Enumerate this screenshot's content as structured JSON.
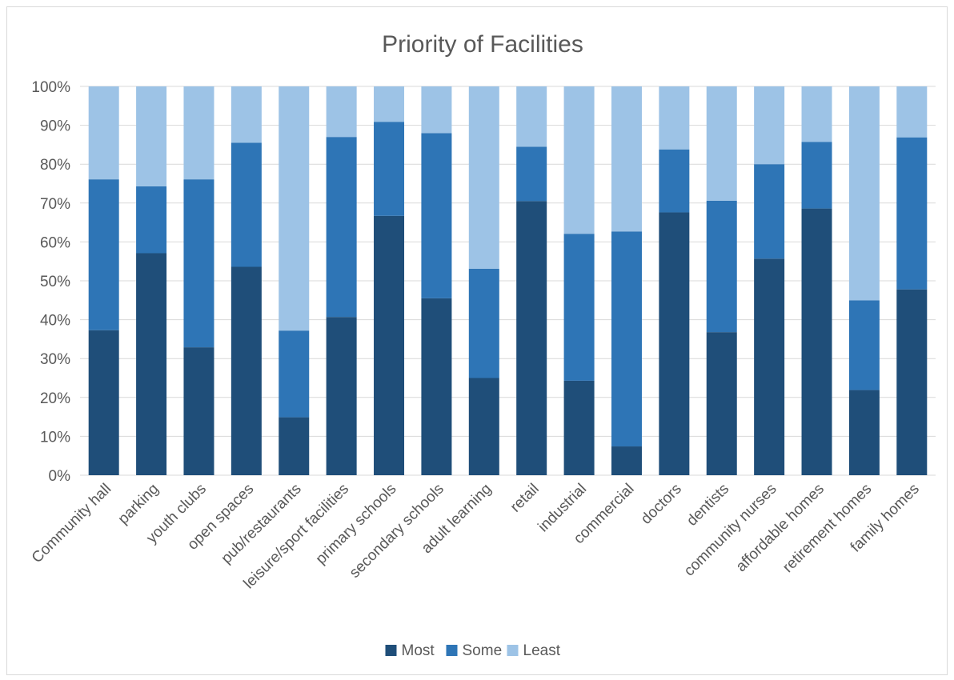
{
  "chart_data": {
    "type": "bar",
    "stacked": "percent",
    "title": "Priority of Facilities",
    "xlabel": "",
    "ylabel": "",
    "ylim": [
      0,
      100
    ],
    "yticks": [
      "0%",
      "10%",
      "20%",
      "30%",
      "40%",
      "50%",
      "60%",
      "70%",
      "80%",
      "90%",
      "100%"
    ],
    "grid": true,
    "legend_position": "bottom",
    "categories": [
      "Community hall",
      "parking",
      "youth clubs",
      "open spaces",
      "pub/restaurants",
      "leisure/sport facilities",
      "primary  schools",
      "secondary schools",
      "adult learning",
      "retail",
      "industrial",
      "commercial",
      "doctors",
      "dentists",
      "community nurses",
      "affordable homes",
      "retirement homes",
      "family homes"
    ],
    "series": [
      {
        "name": "Most",
        "color": "#1f4e79",
        "values": [
          37.3,
          57.1,
          32.9,
          53.6,
          14.9,
          40.7,
          66.7,
          45.5,
          25.0,
          70.5,
          24.3,
          7.4,
          67.6,
          36.8,
          55.7,
          68.6,
          21.9,
          47.8
        ]
      },
      {
        "name": "Some",
        "color": "#2e75b6",
        "values": [
          38.8,
          17.2,
          43.2,
          31.9,
          22.3,
          46.3,
          24.2,
          42.5,
          28.1,
          14.0,
          37.8,
          55.3,
          16.2,
          33.8,
          24.3,
          17.1,
          23.1,
          39.1
        ]
      },
      {
        "name": "Least",
        "color": "#9dc3e6",
        "values": [
          23.9,
          25.7,
          23.9,
          14.5,
          62.8,
          13.0,
          9.1,
          12.0,
          46.9,
          15.5,
          37.9,
          37.3,
          16.2,
          29.4,
          20.0,
          14.3,
          55.0,
          13.1
        ]
      }
    ]
  }
}
